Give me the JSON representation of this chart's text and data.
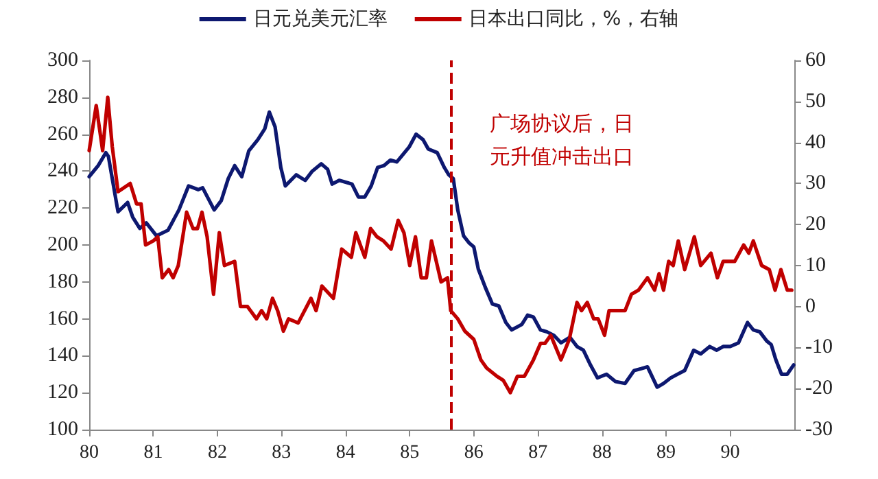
{
  "chart_data": {
    "type": "line",
    "legend": "top",
    "grid": false,
    "marker": "none",
    "line_style": "solid",
    "xlim": [
      80,
      91
    ],
    "xticks": [
      80,
      81,
      82,
      83,
      84,
      85,
      86,
      87,
      88,
      89,
      90
    ],
    "ylim": [
      100,
      300
    ],
    "yticks": [
      100,
      120,
      140,
      160,
      180,
      200,
      220,
      240,
      260,
      280,
      300
    ],
    "y2lim": [
      -30,
      60
    ],
    "y2ticks": [
      -30,
      -20,
      -10,
      0,
      10,
      20,
      30,
      40,
      50,
      60
    ],
    "ref_lines": [
      {
        "axis": "x",
        "value": 85.65,
        "label": "广场协议后，日元升值冲击出口",
        "color": "#c00000",
        "line_style": "dashed"
      }
    ],
    "series": [
      {
        "name": "日元兑美元汇率",
        "color": "#0d1870",
        "x": [
          80.0,
          80.14,
          80.26,
          80.3,
          80.45,
          80.6,
          80.68,
          80.79,
          80.89,
          81.05,
          81.23,
          81.4,
          81.55,
          81.7,
          81.77,
          81.95,
          82.06,
          82.17,
          82.27,
          82.38,
          82.49,
          82.63,
          82.74,
          82.81,
          82.9,
          82.99,
          83.06,
          83.23,
          83.37,
          83.48,
          83.62,
          83.72,
          83.79,
          83.9,
          84.1,
          84.2,
          84.3,
          84.4,
          84.5,
          84.6,
          84.7,
          84.8,
          84.99,
          85.1,
          85.21,
          85.29,
          85.43,
          85.54,
          85.61,
          85.68,
          85.75,
          85.84,
          85.93,
          86.0,
          86.07,
          86.18,
          86.29,
          86.39,
          86.5,
          86.59,
          86.75,
          86.84,
          86.93,
          87.04,
          87.14,
          87.25,
          87.36,
          87.5,
          87.61,
          87.71,
          87.82,
          87.93,
          88.07,
          88.21,
          88.36,
          88.5,
          88.61,
          88.71,
          88.86,
          88.96,
          89.07,
          89.18,
          89.29,
          89.43,
          89.54,
          89.68,
          89.79,
          89.89,
          90.0,
          90.13,
          90.27,
          90.36,
          90.46,
          90.57,
          90.64,
          90.71,
          90.8,
          90.89,
          90.99
        ],
        "values": [
          237,
          243,
          250,
          248,
          218,
          223,
          215,
          209,
          212,
          205,
          208,
          219,
          232,
          230,
          231,
          219,
          224,
          236,
          243,
          237,
          251,
          257,
          263,
          272,
          264,
          242,
          232,
          238,
          235,
          240,
          244,
          241,
          233,
          235,
          233,
          226,
          226,
          232,
          242,
          243,
          246,
          245,
          253,
          260,
          257,
          252,
          250,
          242,
          238,
          236,
          219,
          205,
          201,
          199,
          187,
          177,
          168,
          167,
          158,
          154,
          157,
          162,
          161,
          154,
          153,
          151,
          147,
          150,
          145,
          143,
          135,
          128,
          130,
          126,
          125,
          132,
          133,
          134,
          123,
          125,
          128,
          130,
          132,
          143,
          141,
          145,
          143,
          145,
          145,
          147,
          158,
          154,
          153,
          148,
          146,
          138,
          130,
          130,
          135
        ]
      },
      {
        "name": "日本出口同比，%，右轴",
        "color": "#c00000",
        "axis": "y2",
        "x": [
          80.0,
          80.11,
          80.21,
          80.29,
          80.36,
          80.45,
          80.64,
          80.74,
          80.81,
          80.88,
          81.0,
          81.07,
          81.14,
          81.24,
          81.31,
          81.39,
          81.52,
          81.62,
          81.69,
          81.76,
          81.84,
          81.94,
          82.03,
          82.11,
          82.27,
          82.36,
          82.47,
          82.61,
          82.69,
          82.77,
          82.86,
          82.94,
          83.03,
          83.11,
          83.26,
          83.46,
          83.54,
          83.63,
          83.81,
          83.94,
          84.09,
          84.16,
          84.3,
          84.39,
          84.49,
          84.59,
          84.71,
          84.82,
          84.91,
          85.0,
          85.09,
          85.18,
          85.26,
          85.34,
          85.49,
          85.59,
          85.64,
          85.75,
          85.86,
          86.0,
          86.11,
          86.2,
          86.36,
          86.46,
          86.57,
          86.68,
          86.79,
          86.93,
          87.04,
          87.11,
          87.2,
          87.36,
          87.49,
          87.61,
          87.68,
          87.77,
          87.87,
          87.94,
          88.04,
          88.11,
          88.21,
          88.36,
          88.46,
          88.57,
          88.71,
          88.82,
          88.89,
          88.96,
          89.04,
          89.11,
          89.19,
          89.29,
          89.44,
          89.54,
          89.7,
          89.8,
          89.89,
          90.07,
          90.21,
          90.29,
          90.36,
          90.49,
          90.61,
          90.7,
          90.79,
          90.89,
          90.96
        ],
        "values": [
          38,
          49,
          38,
          51,
          39,
          28,
          30,
          25,
          25,
          15,
          16,
          17,
          7,
          9,
          7,
          10,
          23,
          19,
          19,
          23,
          17,
          3,
          18,
          10,
          11,
          0,
          0,
          -3,
          -1,
          -3,
          2,
          -1,
          -6,
          -3,
          -4,
          2,
          -1,
          5,
          2,
          14,
          12,
          18,
          12,
          19,
          17,
          16,
          14,
          21,
          18,
          10,
          17,
          7,
          7,
          16,
          6,
          7,
          -1,
          -3,
          -6,
          -8,
          -13,
          -15,
          -17,
          -18,
          -21,
          -17,
          -17,
          -13,
          -9,
          -9,
          -7,
          -13,
          -8,
          1,
          -1,
          1,
          -3,
          -3,
          -7,
          -1,
          -1,
          -1,
          3,
          4,
          7,
          4,
          8,
          4,
          11,
          10,
          16,
          9,
          17,
          10,
          13,
          7,
          11,
          11,
          15,
          13,
          16,
          10,
          9,
          4,
          9,
          4,
          4
        ]
      }
    ]
  }
}
